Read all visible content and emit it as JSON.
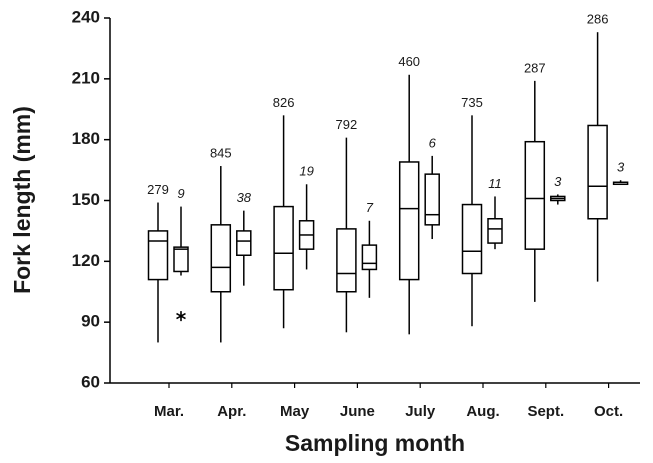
{
  "chart_data": {
    "type": "boxplot",
    "x_label": "Sampling month",
    "y_label": "Fork length (mm)",
    "categories": [
      "Mar.",
      "Apr.",
      "May",
      "June",
      "July",
      "Aug.",
      "Sept.",
      "Oct."
    ],
    "ylim": [
      60,
      240
    ],
    "yticks": [
      60,
      90,
      120,
      150,
      180,
      210,
      240
    ],
    "color": "#000000",
    "series": [
      {
        "values": [
          {
            "min": 80,
            "q1": 111,
            "median": 130,
            "q3": 135,
            "max": 149,
            "n": 279
          },
          {
            "min": 80,
            "q1": 105,
            "median": 117,
            "q3": 138,
            "max": 167,
            "n": 845
          },
          {
            "min": 87,
            "q1": 106,
            "median": 124,
            "q3": 147,
            "max": 192,
            "n": 826
          },
          {
            "min": 85,
            "q1": 105,
            "median": 114,
            "q3": 136,
            "max": 181,
            "n": 792
          },
          {
            "min": 84,
            "q1": 111,
            "median": 146,
            "q3": 169,
            "max": 212,
            "n": 460
          },
          {
            "min": 88,
            "q1": 114,
            "median": 125,
            "q3": 148,
            "max": 192,
            "n": 735
          },
          {
            "min": 100,
            "q1": 126,
            "median": 151,
            "q3": 179,
            "max": 209,
            "n": 287
          },
          {
            "min": 110,
            "q1": 141,
            "median": 157,
            "q3": 187,
            "max": 233,
            "n": 286
          }
        ]
      },
      {
        "italic": true,
        "values": [
          {
            "min": 113,
            "q1": 115,
            "median": 126,
            "q3": 127,
            "max": 147,
            "n": 9,
            "outliers": [
              93
            ]
          },
          {
            "min": 108,
            "q1": 123,
            "median": 130,
            "q3": 135,
            "max": 145,
            "n": 38
          },
          {
            "min": 116,
            "q1": 126,
            "median": 133,
            "q3": 140,
            "max": 158,
            "n": 19
          },
          {
            "min": 102,
            "q1": 116,
            "median": 119,
            "q3": 128,
            "max": 140,
            "n": 7
          },
          {
            "min": 131,
            "q1": 138,
            "median": 143,
            "q3": 163,
            "max": 172,
            "n": 6
          },
          {
            "min": 126,
            "q1": 129,
            "median": 136,
            "q3": 141,
            "max": 152,
            "n": 11
          },
          {
            "min": 148,
            "q1": 150,
            "median": 151,
            "q3": 152,
            "max": 153,
            "n": 3
          },
          {
            "min": 158,
            "q1": 158,
            "median": 159,
            "q3": 159,
            "max": 160,
            "n": 3
          }
        ]
      }
    ]
  }
}
